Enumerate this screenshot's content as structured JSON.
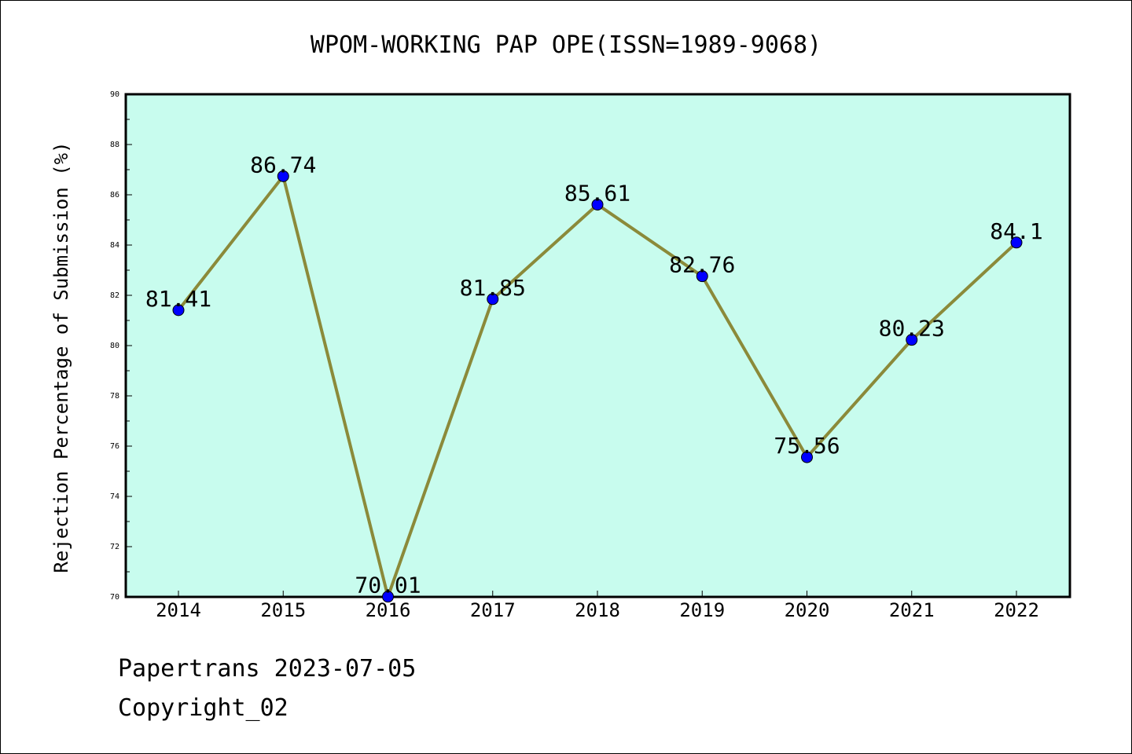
{
  "chart_data": {
    "type": "line",
    "title": "WPOM-WORKING PAP OPE(ISSN=1989-9068)",
    "ylabel": "Rejection Percentage of Submission (%)",
    "xlabel": "",
    "categories": [
      "2014",
      "2015",
      "2016",
      "2017",
      "2018",
      "2019",
      "2020",
      "2021",
      "2022"
    ],
    "values": [
      81.41,
      86.74,
      70.01,
      81.85,
      85.61,
      82.76,
      75.56,
      80.23,
      84.1
    ],
    "data_labels": [
      "81.41",
      "86.74",
      "70.01",
      "81.85",
      "85.61",
      "82.76",
      "75.56",
      "80.23",
      "84.1"
    ],
    "ylim": [
      70,
      90
    ],
    "yticks": [
      "70",
      "72",
      "74",
      "76",
      "78",
      "80",
      "82",
      "84",
      "86",
      "88",
      "90"
    ],
    "grid": false,
    "legend": "none",
    "colors": {
      "plot_background": "#c8fcee",
      "line": "#8b8a3a",
      "marker": "#0000ff"
    }
  },
  "footer": {
    "line1": "Papertrans 2023-07-05",
    "line2": "Copyright_02"
  }
}
